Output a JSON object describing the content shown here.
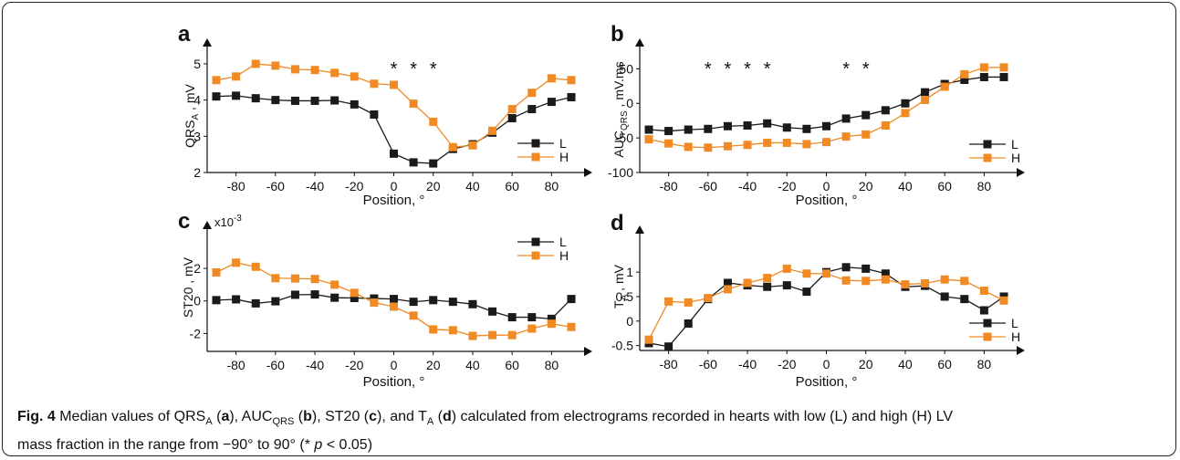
{
  "caption": {
    "figure_label": "Fig. 4",
    "text": "Median values of QRS_A (a), AUC_QRS (b), ST20 (c), and T_A (d) calculated from electrograms recorded in hearts with low (L) and high (H) LV mass fraction in the range from −90° to 90° (* p < 0.05)",
    "body_part1": " Median values of QRS",
    "sub_a": "A",
    "panel_a": "a",
    "body_part2": "), AUC",
    "sub_b": "QRS",
    "panel_b": "b",
    "body_part3": "), ST20 (",
    "panel_c": "c",
    "body_part4": "), and T",
    "sub_d": "A",
    "panel_d": "d",
    "body_part5": ") calculated from electrograms recorded in hearts with low (L) and high (H) LV",
    "body_line2": "mass fraction in the range from −90° to 90° (* ",
    "p_symbol": "p",
    "body_end": " < 0.05)"
  },
  "colors": {
    "L": "#1a1a1a",
    "H": "#f08a24",
    "axis": "#111111"
  },
  "chart_data": [
    {
      "panel": "a",
      "type": "line",
      "ylabel_main": "QRS",
      "ylabel_sub": "A",
      "ylabel_unit": " , mV",
      "xlabel": "Position, °",
      "xlim": [
        -90,
        90
      ],
      "ylim": [
        2,
        5.15
      ],
      "yticks": [
        2,
        3,
        4,
        5
      ],
      "xticks": [
        -80,
        -60,
        -40,
        -20,
        0,
        20,
        40,
        60,
        80
      ],
      "y_scale_label": "",
      "legend": {
        "position": "center-right",
        "entries": [
          "L",
          "H"
        ]
      },
      "significance": {
        "marker": "*",
        "x": [
          0,
          10,
          20
        ]
      },
      "x": [
        -90,
        -80,
        -70,
        -60,
        -50,
        -40,
        -30,
        -20,
        -10,
        0,
        10,
        20,
        30,
        40,
        50,
        60,
        70,
        80,
        90
      ],
      "series": [
        {
          "name": "L",
          "values": [
            4.1,
            4.12,
            4.05,
            4.0,
            3.98,
            3.98,
            3.99,
            3.88,
            3.6,
            2.52,
            2.28,
            2.25,
            2.65,
            2.78,
            3.1,
            3.5,
            3.75,
            3.95,
            4.08
          ]
        },
        {
          "name": "H",
          "values": [
            4.55,
            4.65,
            5.0,
            4.95,
            4.85,
            4.83,
            4.75,
            4.65,
            4.45,
            4.42,
            3.9,
            3.4,
            2.7,
            2.75,
            3.15,
            3.75,
            4.2,
            4.6,
            4.55
          ]
        }
      ]
    },
    {
      "panel": "b",
      "type": "line",
      "ylabel_main": "AUC",
      "ylabel_sub": "QRS",
      "ylabel_unit": " , mV.ms",
      "xlabel": "Position, °",
      "xlim": [
        -90,
        90
      ],
      "ylim": [
        -100,
        65
      ],
      "yticks": [
        -100,
        -50,
        0,
        50
      ],
      "xticks": [
        -80,
        -60,
        -40,
        -20,
        0,
        20,
        40,
        60,
        80
      ],
      "y_scale_label": "",
      "legend": {
        "position": "center-right",
        "entries": [
          "L",
          "H"
        ]
      },
      "significance": {
        "marker": "*",
        "x": [
          -60,
          -50,
          -40,
          -30,
          10,
          20
        ]
      },
      "x": [
        -90,
        -80,
        -70,
        -60,
        -50,
        -40,
        -30,
        -20,
        -10,
        0,
        10,
        20,
        30,
        40,
        50,
        60,
        70,
        80,
        90
      ],
      "series": [
        {
          "name": "L",
          "values": [
            -38,
            -40,
            -38,
            -37,
            -33,
            -32,
            -29,
            -35,
            -37,
            -33,
            -22,
            -17,
            -10,
            0,
            16,
            28,
            34,
            38,
            38
          ]
        },
        {
          "name": "H",
          "values": [
            -52,
            -58,
            -63,
            -64,
            -62,
            -60,
            -57,
            -57,
            -59,
            -56,
            -48,
            -45,
            -32,
            -14,
            5,
            24,
            42,
            52,
            52
          ]
        }
      ]
    },
    {
      "panel": "c",
      "type": "line",
      "ylabel_main": "ST20",
      "ylabel_sub": "",
      "ylabel_unit": " , mV",
      "xlabel": "Position, °",
      "xlim": [
        -90,
        90
      ],
      "ylim": [
        -3.1,
        3.8
      ],
      "yticks": [
        -2,
        0,
        2
      ],
      "xticks": [
        -80,
        -60,
        -40,
        -20,
        0,
        20,
        40,
        60,
        80
      ],
      "y_scale_label": "x10",
      "y_scale_exp": "-3",
      "legend": {
        "position": "top-right",
        "entries": [
          "L",
          "H"
        ]
      },
      "significance": {
        "marker": "*",
        "x": []
      },
      "x": [
        -90,
        -80,
        -70,
        -60,
        -50,
        -40,
        -30,
        -20,
        -10,
        0,
        10,
        20,
        30,
        40,
        50,
        60,
        70,
        80,
        90
      ],
      "series": [
        {
          "name": "L",
          "values": [
            0.05,
            0.1,
            -0.15,
            -0.02,
            0.38,
            0.4,
            0.2,
            0.18,
            0.15,
            0.12,
            -0.05,
            0.05,
            -0.05,
            -0.2,
            -0.65,
            -1.0,
            -1.0,
            -1.1,
            0.12
          ]
        },
        {
          "name": "H",
          "values": [
            1.75,
            2.35,
            2.1,
            1.4,
            1.38,
            1.35,
            1.0,
            0.5,
            -0.1,
            -0.35,
            -0.9,
            -1.75,
            -1.8,
            -2.15,
            -2.1,
            -2.1,
            -1.7,
            -1.4,
            -1.6
          ]
        }
      ]
    },
    {
      "panel": "d",
      "type": "line",
      "ylabel_main": "T",
      "ylabel_sub": "A",
      "ylabel_unit": " , mV",
      "xlabel": "Position, °",
      "xlim": [
        -90,
        90
      ],
      "ylim": [
        -0.6,
        1.45
      ],
      "yticks": [
        -0.5,
        0,
        0.5,
        1
      ],
      "ytick_labels": [
        "-0.5",
        "0",
        "0.5",
        "1"
      ],
      "xticks": [
        -80,
        -60,
        -40,
        -20,
        0,
        20,
        40,
        60,
        80
      ],
      "y_scale_label": "",
      "legend": {
        "position": "bottom-right",
        "entries": [
          "L",
          "H"
        ]
      },
      "significance": {
        "marker": "*",
        "x": []
      },
      "x": [
        -90,
        -80,
        -70,
        -60,
        -50,
        -40,
        -30,
        -20,
        -10,
        0,
        10,
        20,
        30,
        40,
        50,
        60,
        70,
        80,
        90
      ],
      "series": [
        {
          "name": "L",
          "values": [
            -0.45,
            -0.52,
            -0.05,
            0.45,
            0.78,
            0.73,
            0.7,
            0.73,
            0.6,
            1.0,
            1.1,
            1.07,
            0.97,
            0.7,
            0.72,
            0.5,
            0.45,
            0.22,
            0.5
          ]
        },
        {
          "name": "H",
          "values": [
            -0.38,
            0.4,
            0.38,
            0.47,
            0.65,
            0.78,
            0.88,
            1.07,
            0.97,
            0.97,
            0.83,
            0.82,
            0.85,
            0.75,
            0.77,
            0.85,
            0.82,
            0.62,
            0.42
          ]
        }
      ]
    }
  ]
}
